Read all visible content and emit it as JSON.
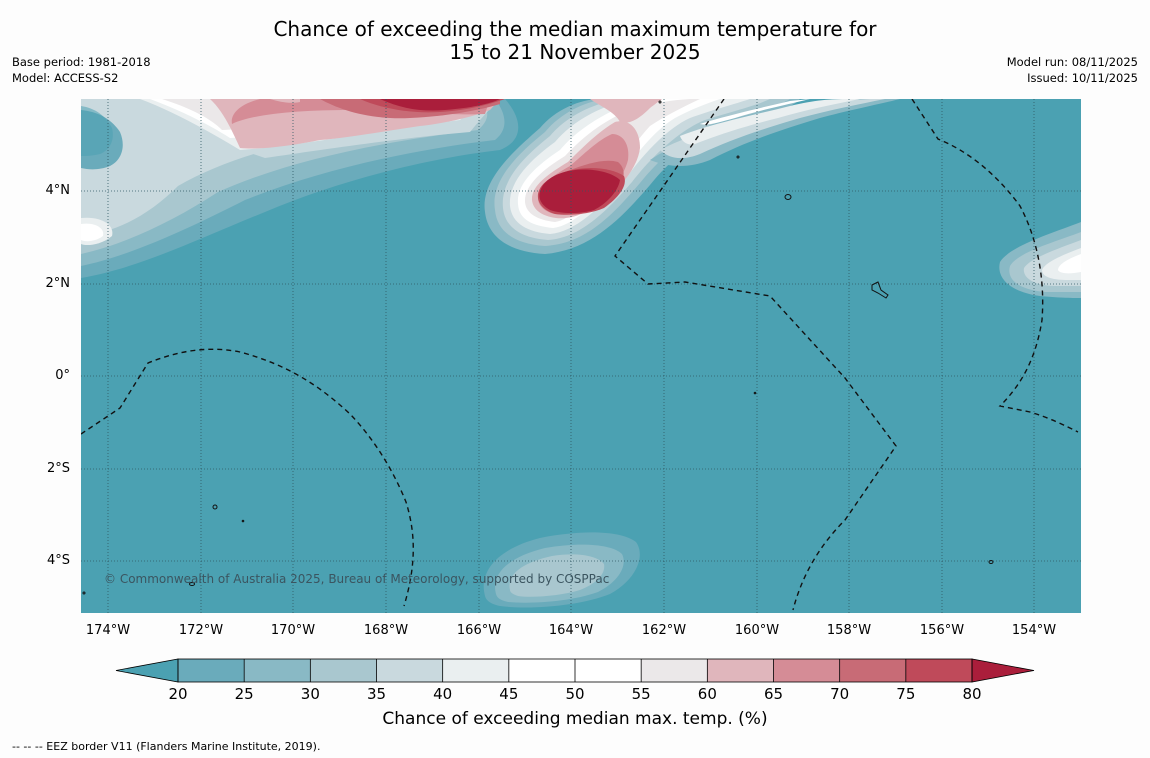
{
  "title": {
    "line1": "Chance of exceeding the median maximum temperature for",
    "line2": "15 to 21 November 2025"
  },
  "meta_left": {
    "base_period": "Base period: 1981-2018",
    "model": "Model: ACCESS-S2"
  },
  "meta_right": {
    "model_run": "Model run: 08/11/2025",
    "issued": "Issued: 10/11/2025"
  },
  "map": {
    "latitude_labels": [
      "4°N",
      "2°N",
      "0°",
      "2°S",
      "4°S"
    ],
    "longitude_labels": [
      "174°W",
      "172°W",
      "170°W",
      "168°W",
      "166°W",
      "164°W",
      "162°W",
      "160°W",
      "158°W",
      "156°W",
      "154°W"
    ],
    "lat_range_deg": [
      -5.2,
      5.9
    ],
    "lon_range_deg": [
      -174.6,
      -153.0
    ],
    "copyright": "© Commonwealth of Australia 2025, Bureau of Meteorology, supported by COSPPac",
    "background_category": "20-25"
  },
  "colorbar": {
    "ticks": [
      "20",
      "25",
      "30",
      "35",
      "40",
      "45",
      "50",
      "55",
      "60",
      "65",
      "70",
      "75",
      "80"
    ],
    "colors": [
      "#4ba1b2",
      "#6aabbb",
      "#89b9c5",
      "#a9c7cf",
      "#c9d9de",
      "#eaeff0",
      "#ffffff",
      "#ffffff",
      "#ebe8e9",
      "#e0b6bc",
      "#d58c96",
      "#c86b76",
      "#bf4a5a"
    ],
    "under_color": "#4ba1b2",
    "over_color": "#aa1e3b",
    "label": "Chance of exceeding median max. temp. (%)"
  },
  "footnote": "--  --  -- EEZ border V11 (Flanders Marine Institute, 2019)."
}
